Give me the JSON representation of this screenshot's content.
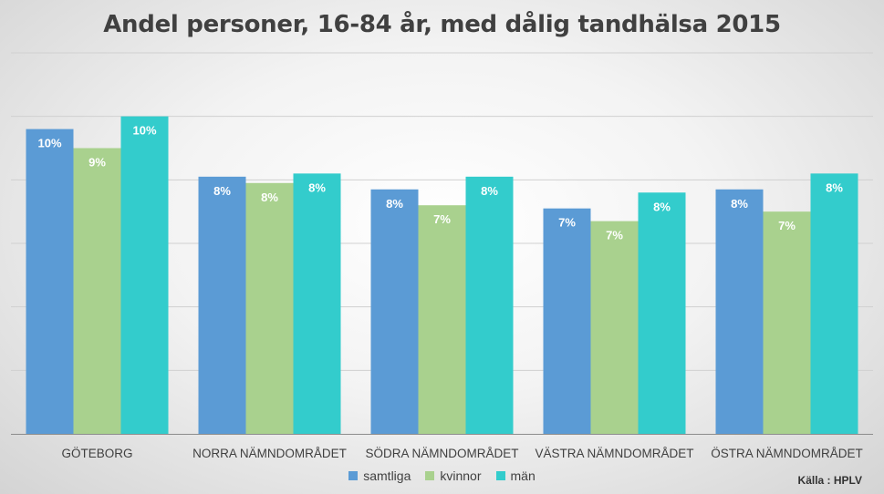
{
  "chart_data": {
    "type": "bar",
    "title": "Andel personer, 16-84 år, med dålig tandhälsa 2015",
    "categories": [
      "GÖTEBORG",
      "NORRA NÄMNDOMRÅDET",
      "SÖDRA NÄMNDOMRÅDET",
      "VÄSTRA NÄMNDOMRÅDET",
      "ÖSTRA NÄMNDOMRÅDET"
    ],
    "series": [
      {
        "name": "samtliga",
        "color": "#5b9bd5",
        "values": [
          9.6,
          8.1,
          7.7,
          7.1,
          7.7
        ],
        "labels": [
          "10%",
          "8%",
          "8%",
          "7%",
          "8%"
        ]
      },
      {
        "name": "kvinnor",
        "color": "#a9d18e",
        "values": [
          9.0,
          7.9,
          7.2,
          6.7,
          7.0
        ],
        "labels": [
          "9%",
          "8%",
          "7%",
          "7%",
          "7%"
        ]
      },
      {
        "name": "män",
        "color": "#33cccc",
        "values": [
          10.0,
          8.2,
          8.1,
          7.6,
          8.2
        ],
        "labels": [
          "10%",
          "8%",
          "8%",
          "8%",
          "8%"
        ]
      }
    ],
    "ylim": [
      0,
      12
    ],
    "grid": true,
    "legend_position": "bottom",
    "xlabel": "",
    "ylabel": ""
  },
  "source_note": "Källa : HPLV"
}
